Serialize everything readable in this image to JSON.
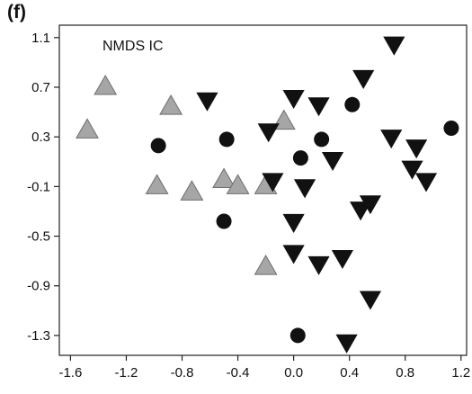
{
  "figure": {
    "panel_label": "(f)"
  },
  "chart_data": {
    "type": "scatter",
    "title": "NMDS IC",
    "xlabel": "",
    "ylabel": "",
    "xlim": [
      -1.68,
      1.24
    ],
    "ylim": [
      -1.46,
      1.2
    ],
    "xticks": [
      -1.6,
      -1.2,
      -0.8,
      -0.4,
      0.0,
      0.4,
      0.8,
      1.2
    ],
    "xtick_labels": [
      "-1.6",
      "-1.2",
      "-0.8",
      "-0.4",
      "0.0",
      "0.4",
      "0.8",
      "1.2"
    ],
    "yticks": [
      1.1,
      0.7,
      0.3,
      -0.1,
      -0.5,
      -0.9,
      -1.3
    ],
    "ytick_labels": [
      "1.1",
      "0.7",
      "0.3",
      "-0.1",
      "-0.5",
      "-0.9",
      "-1.3"
    ],
    "grid": false,
    "legend": "none",
    "series": [
      {
        "marker": "triangle-up",
        "color": "#a6a6a6",
        "x": [
          -1.35,
          -1.48,
          -0.88,
          -0.98,
          -0.73,
          -0.5,
          -0.4,
          -0.07,
          -0.2,
          -0.2
        ],
        "y": [
          0.7,
          0.35,
          0.54,
          -0.1,
          -0.15,
          -0.05,
          -0.1,
          0.42,
          -0.1,
          -0.75
        ]
      },
      {
        "marker": "circle",
        "color": "#111111",
        "x": [
          -0.97,
          -0.48,
          -0.5,
          0.05,
          0.2,
          0.42,
          1.13,
          0.03
        ],
        "y": [
          0.23,
          0.28,
          -0.38,
          0.13,
          0.28,
          0.56,
          0.37,
          -1.3
        ]
      },
      {
        "marker": "triangle-down",
        "color": "#111111",
        "x": [
          0.72,
          0.5,
          -0.62,
          0.0,
          0.18,
          -0.18,
          0.28,
          0.7,
          0.88,
          0.85,
          0.95,
          -0.15,
          0.08,
          0.48,
          0.55,
          0.0,
          0.0,
          0.18,
          0.35,
          0.55,
          0.38
        ],
        "y": [
          1.05,
          0.78,
          0.6,
          0.62,
          0.56,
          0.35,
          0.12,
          0.3,
          0.22,
          0.05,
          -0.05,
          -0.05,
          -0.1,
          -0.28,
          -0.23,
          -0.38,
          -0.63,
          -0.72,
          -0.67,
          -1.0,
          -1.35
        ]
      }
    ]
  }
}
